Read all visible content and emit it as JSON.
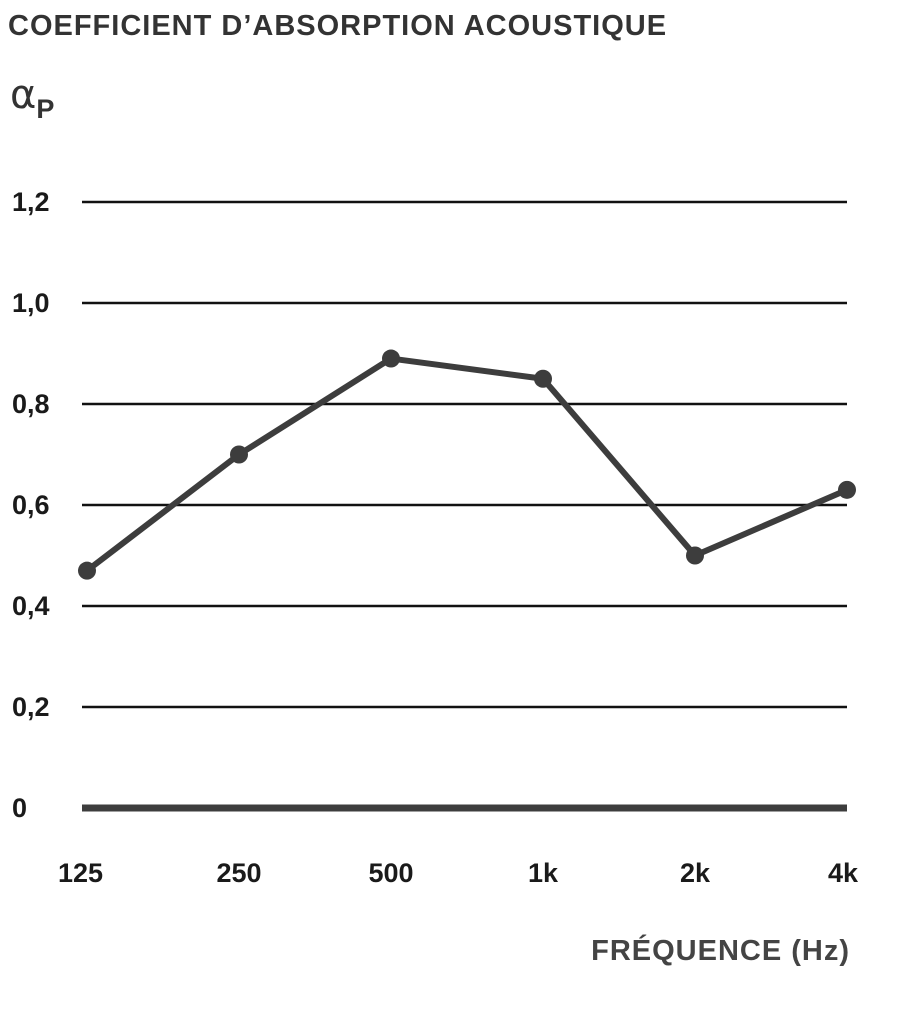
{
  "chart_data": {
    "type": "line",
    "title": "COEFFICIENT D’ABSORPTION ACOUSTIQUE",
    "ylabel": {
      "symbol": "α",
      "subscript": "P"
    },
    "xlabel": "FRÉQUENCE (Hz)",
    "categories": [
      "125",
      "250",
      "500",
      "1k",
      "2k",
      "4k"
    ],
    "y_tick_labels": [
      "0",
      "0,2",
      "0,4",
      "0,6",
      "0,8",
      "1,0",
      "1,2"
    ],
    "y_ticks": [
      0,
      0.2,
      0.4,
      0.6,
      0.8,
      1.0,
      1.2
    ],
    "ylim": [
      0,
      1.2
    ],
    "grid": true,
    "series": [
      {
        "values": [
          0.47,
          0.7,
          0.89,
          0.85,
          0.5,
          0.63
        ]
      }
    ],
    "colors": {
      "line": "#3d3d3d",
      "grid": "#111111",
      "baseline": "#3d3d3d"
    }
  }
}
